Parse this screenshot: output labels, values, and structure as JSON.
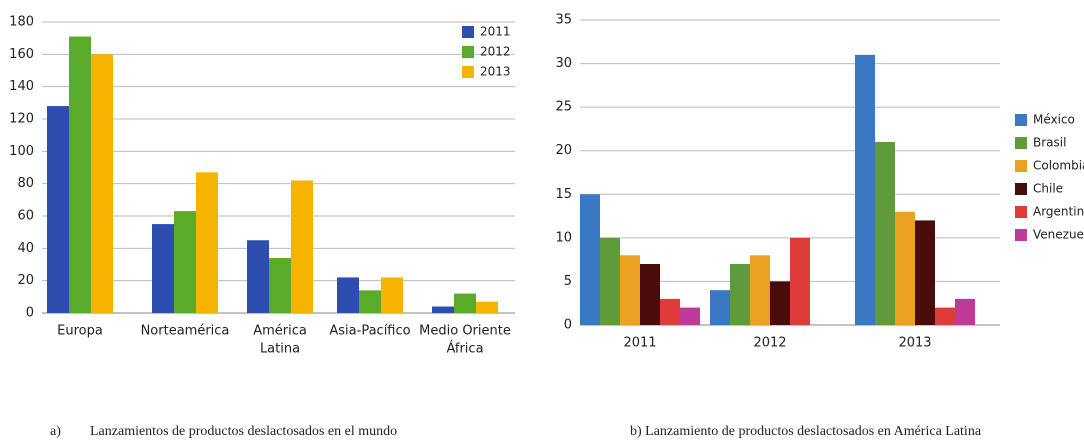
{
  "chart_data": [
    {
      "type": "bar",
      "categories": [
        [
          "Europa"
        ],
        [
          "Norteamérica"
        ],
        [
          "América",
          "Latina"
        ],
        [
          "Asia-Pacífico"
        ],
        [
          "Medio Oriente",
          "África"
        ]
      ],
      "series": [
        {
          "name": "2011",
          "color": "#2d4eaf",
          "values": [
            128,
            55,
            45,
            22,
            4
          ]
        },
        {
          "name": "2012",
          "color": "#5bab2b",
          "values": [
            171,
            63,
            34,
            14,
            12
          ]
        },
        {
          "name": "2013",
          "color": "#f6b400",
          "values": [
            160,
            87,
            82,
            22,
            7
          ]
        }
      ],
      "ylim": [
        0,
        180
      ],
      "yticks": [
        0,
        20,
        40,
        60,
        80,
        100,
        120,
        140,
        160,
        180
      ],
      "grid": true,
      "legend": "top-right",
      "caption_label": "a)",
      "caption": "Lanzamientos de productos deslactosados en el mundo"
    },
    {
      "type": "bar",
      "categories": [
        [
          "2011"
        ],
        [
          "2012"
        ],
        [
          "2013"
        ]
      ],
      "series": [
        {
          "name": "México",
          "color": "#3b78c3",
          "values": [
            15,
            4,
            31
          ]
        },
        {
          "name": "Brasil",
          "color": "#5f9a3b",
          "values": [
            10,
            7,
            21
          ]
        },
        {
          "name": "Colombia",
          "color": "#e9a11f",
          "values": [
            8,
            8,
            13
          ]
        },
        {
          "name": "Chile",
          "color": "#4a0b0b",
          "values": [
            7,
            5,
            12
          ]
        },
        {
          "name": "Argentina",
          "color": "#e03b3b",
          "values": [
            3,
            10,
            2
          ]
        },
        {
          "name": "Venezuela",
          "color": "#c03a9b",
          "values": [
            2,
            null,
            3
          ]
        }
      ],
      "ylim": [
        0,
        35
      ],
      "yticks": [
        0,
        5,
        10,
        15,
        20,
        25,
        30,
        35
      ],
      "grid": true,
      "legend": "right",
      "caption": "b) Lanzamiento de productos deslactosados en América Latina"
    }
  ]
}
